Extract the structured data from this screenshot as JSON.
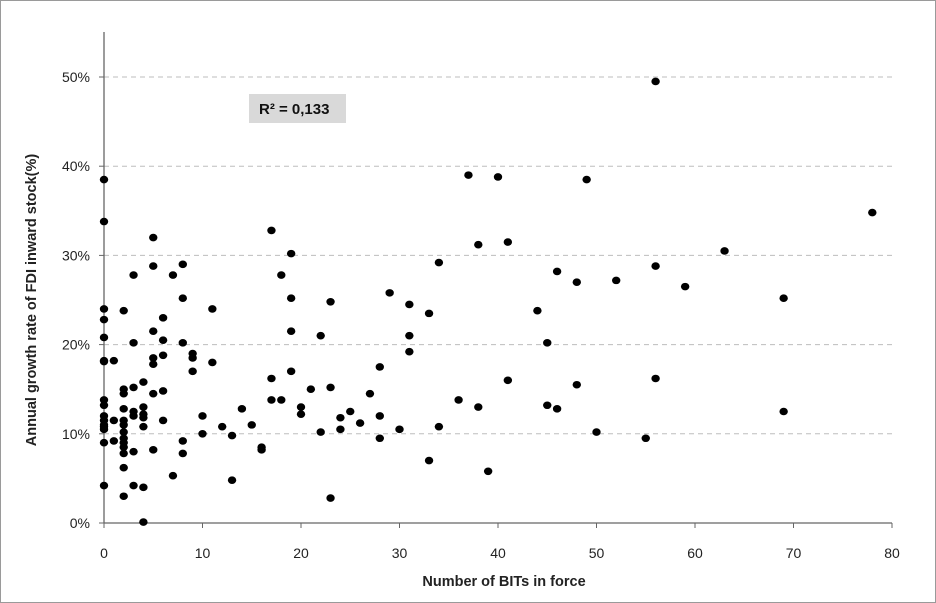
{
  "chart_data": {
    "type": "scatter",
    "title": "",
    "xlabel": "Number of BITs in force",
    "ylabel": "Annual growth rate of FDI inward stock(%)",
    "xlim": [
      0,
      80
    ],
    "ylim": [
      0,
      55
    ],
    "x_ticks": [
      0,
      10,
      20,
      30,
      40,
      50,
      60,
      70,
      80
    ],
    "x_tick_labels": [
      "0",
      "10",
      "20",
      "30",
      "40",
      "50",
      "60",
      "70",
      "80"
    ],
    "y_ticks": [
      0,
      10,
      20,
      30,
      40,
      50
    ],
    "y_tick_labels": [
      "0%",
      "10%",
      "20%",
      "30%",
      "40%",
      "50%"
    ],
    "grid": "horizontal dashed",
    "legend": "none",
    "annotation": "R² = 0,133",
    "colors": {
      "points": "#000000",
      "grid": "#bdbdbd",
      "annotation_bg": "#d9d9d9"
    },
    "series": [
      {
        "points": [
          [
            0,
            38.5
          ],
          [
            0,
            33.8
          ],
          [
            0,
            24
          ],
          [
            0,
            22.8
          ],
          [
            0,
            20.8
          ],
          [
            0,
            18.2
          ],
          [
            0,
            18.1
          ],
          [
            0,
            13.8
          ],
          [
            0,
            13.2
          ],
          [
            0,
            12
          ],
          [
            0,
            11.5
          ],
          [
            0,
            11
          ],
          [
            0,
            10.8
          ],
          [
            0,
            10.5
          ],
          [
            0,
            9
          ],
          [
            0,
            4.2
          ],
          [
            1,
            18.2
          ],
          [
            1,
            11.5
          ],
          [
            1,
            9.2
          ],
          [
            2,
            23.8
          ],
          [
            2,
            15
          ],
          [
            2,
            14.5
          ],
          [
            2,
            12.8
          ],
          [
            2,
            11.5
          ],
          [
            2,
            11
          ],
          [
            2,
            10.2
          ],
          [
            2,
            9.5
          ],
          [
            2,
            9
          ],
          [
            2,
            8.5
          ],
          [
            2,
            7.8
          ],
          [
            2,
            6.2
          ],
          [
            2,
            3
          ],
          [
            3,
            27.8
          ],
          [
            3,
            20.2
          ],
          [
            3,
            15.2
          ],
          [
            3,
            12.5
          ],
          [
            3,
            12
          ],
          [
            3,
            8
          ],
          [
            3,
            4.2
          ],
          [
            4,
            15.8
          ],
          [
            4,
            13
          ],
          [
            4,
            12.2
          ],
          [
            4,
            11.8
          ],
          [
            4,
            10.8
          ],
          [
            4,
            4
          ],
          [
            4,
            0.1
          ],
          [
            5,
            32
          ],
          [
            5,
            28.8
          ],
          [
            5,
            21.5
          ],
          [
            5,
            18.5
          ],
          [
            5,
            17.8
          ],
          [
            5,
            14.5
          ],
          [
            5,
            8.2
          ],
          [
            6,
            23
          ],
          [
            6,
            20.5
          ],
          [
            6,
            18.8
          ],
          [
            6,
            14.8
          ],
          [
            6,
            11.5
          ],
          [
            7,
            27.8
          ],
          [
            7,
            5.3
          ],
          [
            8,
            29
          ],
          [
            8,
            25.2
          ],
          [
            8,
            20.2
          ],
          [
            8,
            9.2
          ],
          [
            8,
            7.8
          ],
          [
            9,
            19
          ],
          [
            9,
            18.5
          ],
          [
            9,
            17
          ],
          [
            10,
            12
          ],
          [
            10,
            10
          ],
          [
            11,
            24
          ],
          [
            11,
            18
          ],
          [
            12,
            10.8
          ],
          [
            13,
            9.8
          ],
          [
            13,
            4.8
          ],
          [
            14,
            12.8
          ],
          [
            15,
            11
          ],
          [
            16,
            8.5
          ],
          [
            16,
            8.2
          ],
          [
            17,
            32.8
          ],
          [
            17,
            16.2
          ],
          [
            17,
            13.8
          ],
          [
            18,
            27.8
          ],
          [
            18,
            13.8
          ],
          [
            19,
            30.2
          ],
          [
            19,
            25.2
          ],
          [
            19,
            21.5
          ],
          [
            19,
            17
          ],
          [
            20,
            13
          ],
          [
            20,
            12.2
          ],
          [
            21,
            15
          ],
          [
            22,
            21
          ],
          [
            22,
            10.2
          ],
          [
            23,
            24.8
          ],
          [
            23,
            15.2
          ],
          [
            23,
            2.8
          ],
          [
            24,
            11.8
          ],
          [
            24,
            10.5
          ],
          [
            25,
            12.5
          ],
          [
            26,
            11.2
          ],
          [
            27,
            14.5
          ],
          [
            28,
            17.5
          ],
          [
            28,
            12
          ],
          [
            28,
            9.5
          ],
          [
            29,
            25.8
          ],
          [
            30,
            10.5
          ],
          [
            31,
            24.5
          ],
          [
            31,
            21
          ],
          [
            31,
            19.2
          ],
          [
            33,
            23.5
          ],
          [
            33,
            7
          ],
          [
            34,
            29.2
          ],
          [
            34,
            10.8
          ],
          [
            36,
            13.8
          ],
          [
            37,
            39
          ],
          [
            38,
            31.2
          ],
          [
            38,
            13
          ],
          [
            39,
            5.8
          ],
          [
            40,
            38.8
          ],
          [
            41,
            31.5
          ],
          [
            41,
            16
          ],
          [
            44,
            23.8
          ],
          [
            45,
            20.2
          ],
          [
            45,
            13.2
          ],
          [
            46,
            28.2
          ],
          [
            46,
            12.8
          ],
          [
            48,
            27
          ],
          [
            48,
            15.5
          ],
          [
            49,
            38.5
          ],
          [
            50,
            10.2
          ],
          [
            52,
            27.2
          ],
          [
            55,
            9.5
          ],
          [
            56,
            49.5
          ],
          [
            56,
            28.8
          ],
          [
            56,
            16.2
          ],
          [
            59,
            26.5
          ],
          [
            63,
            30.5
          ],
          [
            69,
            25.2
          ],
          [
            69,
            12.5
          ],
          [
            78,
            34.8
          ]
        ]
      }
    ]
  }
}
